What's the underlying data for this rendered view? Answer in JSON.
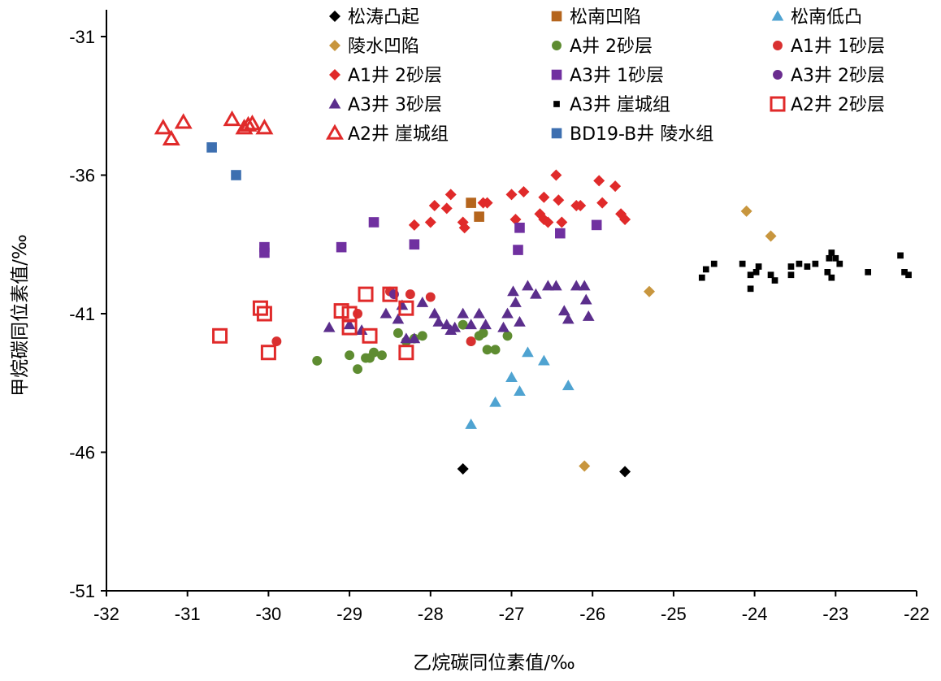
{
  "chart_data": {
    "type": "scatter",
    "xlabel": "乙烷碳同位素值/‰",
    "ylabel": "甲烷碳同位素值/‰",
    "xlim": [
      -32,
      -22
    ],
    "ylim": [
      -51,
      -30
    ],
    "xticks": [
      -32,
      -31,
      -30,
      -29,
      -28,
      -27,
      -26,
      -25,
      -24,
      -23,
      -22
    ],
    "yticks": [
      -51,
      -46,
      -41,
      -36,
      -31
    ],
    "grid": false,
    "legend": "top-inside, three columns",
    "series": [
      {
        "name": "松涛凸起",
        "marker": "diamond",
        "color": "#000000",
        "filled": true,
        "points": [
          [
            -27.6,
            -46.6
          ],
          [
            -25.6,
            -46.7
          ]
        ]
      },
      {
        "name": "松南凹陷",
        "marker": "square",
        "color": "#b5651d",
        "filled": true,
        "points": [
          [
            -27.5,
            -37.0
          ],
          [
            -27.4,
            -37.5
          ]
        ]
      },
      {
        "name": "松南低凸",
        "marker": "triangle",
        "color": "#4fa3d1",
        "filled": true,
        "points": [
          [
            -26.8,
            -42.4
          ],
          [
            -26.6,
            -42.7
          ],
          [
            -27.0,
            -43.3
          ],
          [
            -26.9,
            -43.8
          ],
          [
            -26.3,
            -43.6
          ],
          [
            -27.2,
            -44.2
          ],
          [
            -27.5,
            -45.0
          ]
        ]
      },
      {
        "name": "陵水凹陷",
        "marker": "diamond",
        "color": "#c8963e",
        "filled": true,
        "points": [
          [
            -24.1,
            -37.3
          ],
          [
            -23.8,
            -38.2
          ],
          [
            -25.3,
            -40.2
          ],
          [
            -26.1,
            -46.5
          ]
        ]
      },
      {
        "name": "A井 2砂层",
        "marker": "circle",
        "color": "#5e8c31",
        "filled": true,
        "points": [
          [
            -29.4,
            -42.7
          ],
          [
            -29.0,
            -42.5
          ],
          [
            -28.9,
            -43.0
          ],
          [
            -28.8,
            -42.6
          ],
          [
            -28.7,
            -42.4
          ],
          [
            -28.6,
            -42.5
          ],
          [
            -28.4,
            -41.7
          ],
          [
            -28.3,
            -42.0
          ],
          [
            -28.2,
            -41.9
          ],
          [
            -28.1,
            -41.8
          ],
          [
            -27.6,
            -41.4
          ],
          [
            -27.5,
            -42.0
          ],
          [
            -27.4,
            -41.8
          ],
          [
            -27.35,
            -41.7
          ],
          [
            -27.3,
            -42.3
          ],
          [
            -27.2,
            -42.3
          ],
          [
            -27.05,
            -41.8
          ],
          [
            -28.75,
            -42.6
          ]
        ]
      },
      {
        "name": "A1井 1砂层",
        "marker": "circle",
        "color": "#d93030",
        "filled": true,
        "points": [
          [
            -29.9,
            -42.0
          ],
          [
            -28.9,
            -41.0
          ],
          [
            -28.5,
            -40.2
          ],
          [
            -28.25,
            -40.3
          ],
          [
            -28.0,
            -40.4
          ],
          [
            -27.5,
            -42.0
          ]
        ]
      },
      {
        "name": "A1井 2砂层",
        "marker": "diamond",
        "color": "#e02a2a",
        "filled": true,
        "points": [
          [
            -28.2,
            -37.8
          ],
          [
            -28.0,
            -37.7
          ],
          [
            -27.95,
            -37.1
          ],
          [
            -27.8,
            -37.2
          ],
          [
            -27.75,
            -36.7
          ],
          [
            -27.6,
            -37.7
          ],
          [
            -27.58,
            -37.9
          ],
          [
            -27.35,
            -37.0
          ],
          [
            -27.3,
            -37.0
          ],
          [
            -27.0,
            -36.7
          ],
          [
            -26.95,
            -37.6
          ],
          [
            -26.85,
            -36.6
          ],
          [
            -26.65,
            -37.4
          ],
          [
            -26.6,
            -37.6
          ],
          [
            -26.55,
            -37.7
          ],
          [
            -26.6,
            -36.8
          ],
          [
            -26.45,
            -36.0
          ],
          [
            -26.42,
            -36.9
          ],
          [
            -26.38,
            -37.7
          ],
          [
            -26.2,
            -37.1
          ],
          [
            -26.15,
            -37.1
          ],
          [
            -25.92,
            -36.2
          ],
          [
            -25.88,
            -37.0
          ],
          [
            -25.72,
            -36.4
          ],
          [
            -25.65,
            -37.4
          ],
          [
            -25.6,
            -37.6
          ]
        ]
      },
      {
        "name": "A3井 1砂层",
        "marker": "square",
        "color": "#7030a0",
        "filled": true,
        "points": [
          [
            -30.05,
            -38.6
          ],
          [
            -30.05,
            -38.8
          ],
          [
            -29.1,
            -38.6
          ],
          [
            -28.7,
            -37.7
          ],
          [
            -28.2,
            -38.5
          ],
          [
            -26.9,
            -37.9
          ],
          [
            -26.92,
            -38.7
          ],
          [
            -26.4,
            -38.1
          ],
          [
            -25.95,
            -37.8
          ]
        ]
      },
      {
        "name": "A3井 2砂层",
        "marker": "circle",
        "color": "#6a2c8f",
        "filled": true,
        "points": [
          [
            -28.45,
            -40.3
          ]
        ]
      },
      {
        "name": "A3井 3砂层",
        "marker": "triangle",
        "color": "#5b2e8c",
        "filled": true,
        "points": [
          [
            -29.25,
            -41.5
          ],
          [
            -29.0,
            -41.4
          ],
          [
            -28.85,
            -41.6
          ],
          [
            -28.55,
            -41.0
          ],
          [
            -28.4,
            -41.2
          ],
          [
            -28.35,
            -40.7
          ],
          [
            -28.3,
            -41.9
          ],
          [
            -28.2,
            -41.9
          ],
          [
            -28.1,
            -40.6
          ],
          [
            -27.95,
            -41.0
          ],
          [
            -27.9,
            -41.3
          ],
          [
            -27.8,
            -41.4
          ],
          [
            -27.75,
            -41.6
          ],
          [
            -27.7,
            -41.5
          ],
          [
            -27.6,
            -41.0
          ],
          [
            -27.5,
            -41.4
          ],
          [
            -27.4,
            -41.0
          ],
          [
            -27.32,
            -41.4
          ],
          [
            -27.1,
            -41.5
          ],
          [
            -27.05,
            -41.0
          ],
          [
            -26.98,
            -40.2
          ],
          [
            -26.95,
            -40.6
          ],
          [
            -26.9,
            -41.3
          ],
          [
            -26.8,
            -40.0
          ],
          [
            -26.7,
            -40.3
          ],
          [
            -26.55,
            -40.0
          ],
          [
            -26.45,
            -40.0
          ],
          [
            -26.35,
            -40.9
          ],
          [
            -26.3,
            -41.2
          ],
          [
            -26.2,
            -40.0
          ],
          [
            -26.1,
            -40.0
          ],
          [
            -26.08,
            -40.5
          ],
          [
            -26.05,
            -41.1
          ]
        ]
      },
      {
        "name": "A3井 崖城组",
        "marker": "smallsquare",
        "color": "#000000",
        "filled": true,
        "points": [
          [
            -24.65,
            -39.7
          ],
          [
            -24.6,
            -39.4
          ],
          [
            -24.5,
            -39.2
          ],
          [
            -24.15,
            -39.2
          ],
          [
            -24.05,
            -39.6
          ],
          [
            -24.05,
            -40.1
          ],
          [
            -23.98,
            -39.5
          ],
          [
            -23.95,
            -39.3
          ],
          [
            -23.8,
            -39.6
          ],
          [
            -23.75,
            -39.8
          ],
          [
            -23.55,
            -39.3
          ],
          [
            -23.55,
            -39.6
          ],
          [
            -23.45,
            -39.2
          ],
          [
            -23.35,
            -39.3
          ],
          [
            -23.25,
            -39.2
          ],
          [
            -23.1,
            -39.5
          ],
          [
            -23.05,
            -39.7
          ],
          [
            -23.08,
            -39.0
          ],
          [
            -23.05,
            -38.8
          ],
          [
            -23.0,
            -39.0
          ],
          [
            -22.95,
            -39.2
          ],
          [
            -22.6,
            -39.5
          ],
          [
            -22.2,
            -38.9
          ],
          [
            -22.15,
            -39.5
          ],
          [
            -22.1,
            -39.6
          ]
        ]
      },
      {
        "name": "A2井 2砂层",
        "marker": "square",
        "color": "#e02a2a",
        "filled": false,
        "points": [
          [
            -30.6,
            -41.8
          ],
          [
            -30.1,
            -40.8
          ],
          [
            -30.05,
            -41.0
          ],
          [
            -30.0,
            -42.4
          ],
          [
            -29.1,
            -40.9
          ],
          [
            -29.0,
            -41.0
          ],
          [
            -29.0,
            -41.5
          ],
          [
            -28.8,
            -40.3
          ],
          [
            -28.75,
            -41.8
          ],
          [
            -28.5,
            -40.3
          ],
          [
            -28.3,
            -40.8
          ],
          [
            -28.3,
            -42.4
          ]
        ]
      },
      {
        "name": "A2井 崖城组",
        "marker": "triangle",
        "color": "#e02a2a",
        "filled": false,
        "points": [
          [
            -31.3,
            -34.3
          ],
          [
            -31.2,
            -34.7
          ],
          [
            -31.05,
            -34.1
          ],
          [
            -30.45,
            -34.0
          ],
          [
            -30.3,
            -34.3
          ],
          [
            -30.25,
            -34.2
          ],
          [
            -30.2,
            -34.15
          ],
          [
            -30.05,
            -34.3
          ]
        ]
      },
      {
        "name": "BD19-B井 陵水组",
        "marker": "square",
        "color": "#3d6fb0",
        "filled": true,
        "points": [
          [
            -30.7,
            -35.0
          ],
          [
            -30.4,
            -36.0
          ]
        ]
      }
    ]
  }
}
